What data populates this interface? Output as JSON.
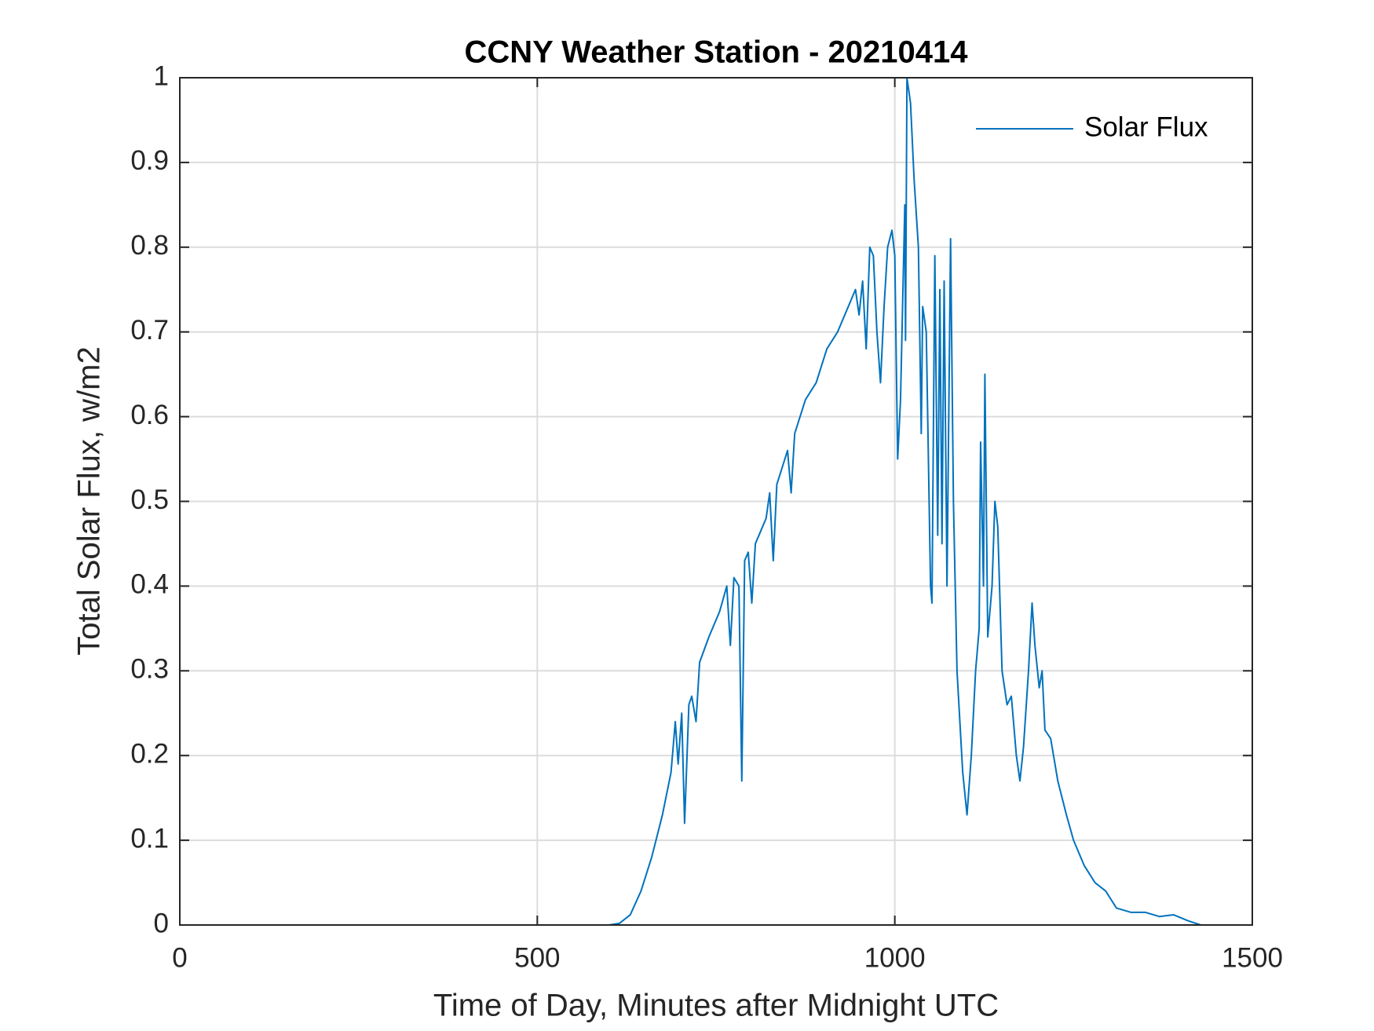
{
  "chart_data": {
    "type": "line",
    "title": "CCNY Weather Station - 20210414",
    "x_label": "Time of Day, Minutes after Midnight UTC",
    "y_label": "Total Solar Flux, w/m2",
    "x": [
      0,
      600,
      615,
      630,
      645,
      660,
      675,
      687,
      693,
      697,
      702,
      706,
      712,
      716,
      722,
      727,
      740,
      755,
      765,
      770,
      775,
      782,
      786,
      790,
      795,
      800,
      805,
      820,
      825,
      830,
      835,
      850,
      855,
      860,
      875,
      890,
      905,
      920,
      935,
      945,
      950,
      955,
      960,
      965,
      970,
      975,
      980,
      985,
      990,
      996,
      1000,
      1004,
      1008,
      1014,
      1015,
      1017,
      1022,
      1027,
      1033,
      1037,
      1039,
      1044,
      1050,
      1052,
      1056,
      1060,
      1063,
      1066,
      1069,
      1073,
      1078,
      1082,
      1087,
      1095,
      1101,
      1107,
      1113,
      1118,
      1120,
      1124,
      1126,
      1130,
      1136,
      1140,
      1144,
      1150,
      1157,
      1163,
      1170,
      1175,
      1180,
      1187,
      1192,
      1196,
      1202,
      1206,
      1210,
      1218,
      1228,
      1240,
      1250,
      1265,
      1280,
      1295,
      1310,
      1330,
      1350,
      1370,
      1390,
      1410,
      1428
    ],
    "series": [
      {
        "name": "Solar Flux",
        "color": "#0072bd",
        "values": [
          0,
          0,
          0.002,
          0.012,
          0.04,
          0.08,
          0.13,
          0.18,
          0.24,
          0.19,
          0.25,
          0.12,
          0.26,
          0.27,
          0.24,
          0.31,
          0.34,
          0.37,
          0.4,
          0.33,
          0.41,
          0.4,
          0.17,
          0.43,
          0.44,
          0.38,
          0.45,
          0.48,
          0.51,
          0.43,
          0.52,
          0.56,
          0.51,
          0.58,
          0.62,
          0.64,
          0.68,
          0.7,
          0.73,
          0.75,
          0.72,
          0.76,
          0.68,
          0.8,
          0.79,
          0.7,
          0.64,
          0.73,
          0.8,
          0.82,
          0.79,
          0.55,
          0.62,
          0.85,
          0.69,
          1.0,
          0.97,
          0.88,
          0.8,
          0.58,
          0.73,
          0.7,
          0.4,
          0.38,
          0.79,
          0.46,
          0.75,
          0.45,
          0.76,
          0.4,
          0.81,
          0.5,
          0.3,
          0.18,
          0.13,
          0.2,
          0.3,
          0.35,
          0.57,
          0.4,
          0.65,
          0.34,
          0.4,
          0.5,
          0.47,
          0.3,
          0.26,
          0.27,
          0.2,
          0.17,
          0.21,
          0.3,
          0.38,
          0.33,
          0.28,
          0.3,
          0.23,
          0.22,
          0.17,
          0.13,
          0.1,
          0.07,
          0.05,
          0.04,
          0.02,
          0.015,
          0.015,
          0.01,
          0.012,
          0.005,
          0
        ]
      }
    ],
    "xlim": [
      0,
      1500
    ],
    "xticks": [
      0,
      500,
      1000,
      1500
    ],
    "ylim": [
      0,
      1
    ],
    "yticks": [
      0,
      0.1,
      0.2,
      0.3,
      0.4,
      0.5,
      0.6,
      0.7,
      0.8,
      0.9,
      1
    ],
    "grid": true,
    "legend": "northeast"
  }
}
